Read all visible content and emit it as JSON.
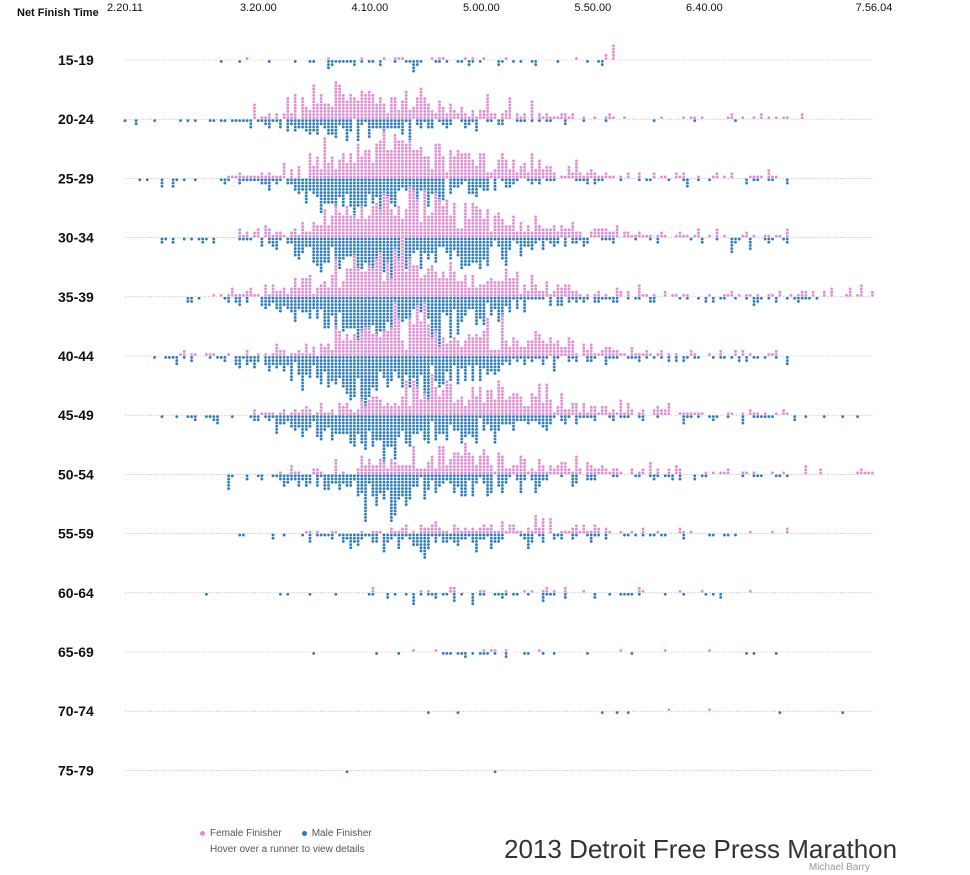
{
  "chart_data": {
    "type": "scatter",
    "title": "2013 Detroit Free Press Marathon",
    "xlabel": "Net Finish Time",
    "x_unit": "hours",
    "x_ticks": [
      {
        "value": 2.3364,
        "label": "2.20.11"
      },
      {
        "value": 3.3333,
        "label": "3.20.00"
      },
      {
        "value": 4.1667,
        "label": "4.10.00"
      },
      {
        "value": 5.0,
        "label": "5.00.00"
      },
      {
        "value": 5.8333,
        "label": "5.50.00"
      },
      {
        "value": 6.6667,
        "label": "6.40.00"
      },
      {
        "value": 7.9344,
        "label": "7.56.04"
      }
    ],
    "xlim": [
      2.3364,
      7.9344
    ],
    "categories": [
      "15-19",
      "20-24",
      "25-29",
      "30-34",
      "35-39",
      "40-44",
      "45-49",
      "50-54",
      "55-59",
      "60-64",
      "65-69",
      "70-74",
      "75-79"
    ],
    "series": [
      {
        "name": "Female Finisher",
        "color": "#e08bd4"
      },
      {
        "name": "Male Finisher",
        "color": "#2b7bb9"
      }
    ],
    "groups": [
      {
        "category": "15-19",
        "female": {
          "count": 22,
          "min": 3.25,
          "max": 6.0,
          "peak": 5.1,
          "spread": 0.9
        },
        "male": {
          "count": 55,
          "min": 3.05,
          "max": 5.9,
          "peak": 4.4,
          "spread": 0.8
        }
      },
      {
        "category": "20-24",
        "female": {
          "count": 380,
          "min": 3.3,
          "max": 7.4,
          "peak": 4.2,
          "spread": 0.7
        },
        "male": {
          "count": 210,
          "min": 2.3364,
          "max": 6.9,
          "peak": 4.0,
          "spread": 0.7
        }
      },
      {
        "category": "25-29",
        "female": {
          "count": 560,
          "min": 3.1,
          "max": 7.2,
          "peak": 4.4,
          "spread": 0.75
        },
        "male": {
          "count": 420,
          "min": 2.45,
          "max": 7.3,
          "peak": 4.2,
          "spread": 0.7
        }
      },
      {
        "category": "30-34",
        "female": {
          "count": 620,
          "min": 3.2,
          "max": 7.3,
          "peak": 4.5,
          "spread": 0.75
        },
        "male": {
          "count": 560,
          "min": 2.6,
          "max": 7.3,
          "peak": 4.3,
          "spread": 0.7
        }
      },
      {
        "category": "35-39",
        "female": {
          "count": 600,
          "min": 3.0,
          "max": 7.9344,
          "peak": 4.5,
          "spread": 0.8
        },
        "male": {
          "count": 620,
          "min": 2.8,
          "max": 7.5,
          "peak": 4.3,
          "spread": 0.7
        }
      },
      {
        "category": "40-44",
        "female": {
          "count": 540,
          "min": 2.75,
          "max": 7.2,
          "peak": 4.6,
          "spread": 0.8
        },
        "male": {
          "count": 600,
          "min": 2.55,
          "max": 7.3,
          "peak": 4.2,
          "spread": 0.7
        }
      },
      {
        "category": "45-49",
        "female": {
          "count": 470,
          "min": 3.3,
          "max": 7.3,
          "peak": 4.8,
          "spread": 0.8
        },
        "male": {
          "count": 520,
          "min": 2.6,
          "max": 7.8,
          "peak": 4.35,
          "spread": 0.75
        }
      },
      {
        "category": "50-54",
        "female": {
          "count": 330,
          "min": 3.5,
          "max": 7.9344,
          "peak": 4.9,
          "spread": 0.8
        },
        "male": {
          "count": 380,
          "min": 3.1,
          "max": 7.3,
          "peak": 4.4,
          "spread": 0.75
        }
      },
      {
        "category": "55-59",
        "female": {
          "count": 130,
          "min": 3.7,
          "max": 7.3,
          "peak": 5.1,
          "spread": 0.8
        },
        "male": {
          "count": 190,
          "min": 3.2,
          "max": 6.9,
          "peak": 4.6,
          "spread": 0.8
        }
      },
      {
        "category": "60-64",
        "female": {
          "count": 26,
          "min": 4.2,
          "max": 7.0,
          "peak": 5.2,
          "spread": 0.8
        },
        "male": {
          "count": 62,
          "min": 2.95,
          "max": 6.8,
          "peak": 4.8,
          "spread": 0.8
        }
      },
      {
        "category": "65-69",
        "female": {
          "count": 10,
          "min": 4.5,
          "max": 6.7,
          "peak": 5.4,
          "spread": 0.7
        },
        "male": {
          "count": 26,
          "min": 3.75,
          "max": 7.2,
          "peak": 5.0,
          "spread": 0.9
        }
      },
      {
        "category": "70-74",
        "female": {
          "count": 2,
          "min": 6.4,
          "max": 6.7,
          "peak": 6.55,
          "spread": 0.2
        },
        "male": {
          "count": 7,
          "min": 4.6,
          "max": 7.7,
          "peak": 6.0,
          "spread": 1.0
        }
      },
      {
        "category": "75-79",
        "female": {
          "count": 0,
          "min": 4.0,
          "max": 5.1,
          "peak": 4.5,
          "spread": 0.3
        },
        "male": {
          "count": 2,
          "min": 4.0,
          "max": 5.1,
          "peak": 4.5,
          "spread": 0.5
        }
      }
    ]
  },
  "legend": {
    "female_label": "Female Finisher",
    "male_label": "Male Finisher",
    "hint": "Hover over a runner to view details",
    "female_color": "#e08bd4",
    "male_color": "#2b7bb9"
  },
  "credit": "Michael Barry"
}
